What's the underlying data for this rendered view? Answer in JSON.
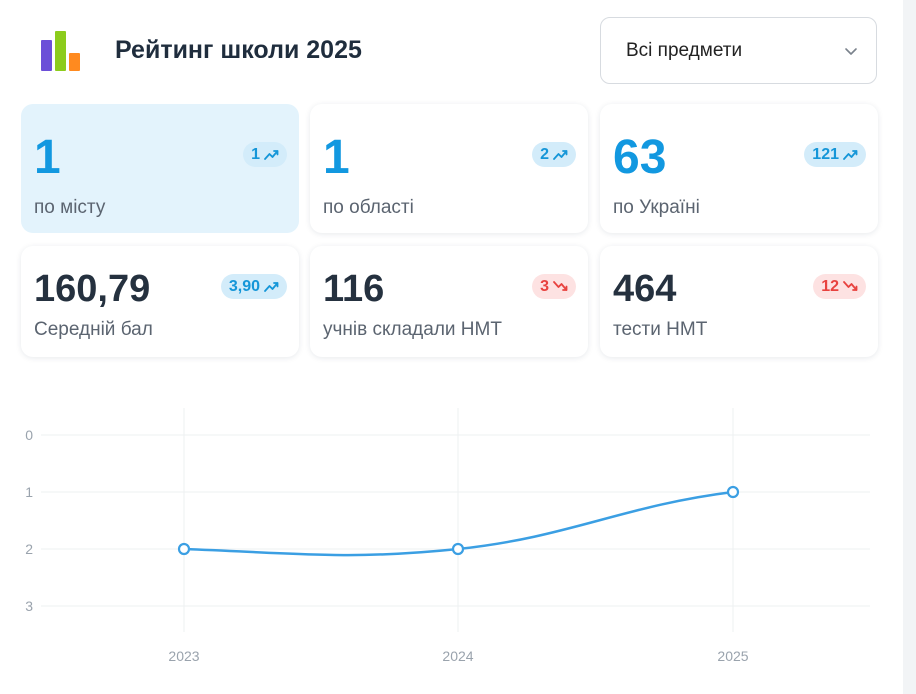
{
  "header": {
    "title": "Рейтинг школи 2025",
    "logo_icon": "bar-chart-logo-icon",
    "logo_colors": [
      "#6c4fd8",
      "#8ccc1c",
      "#ff8a1f"
    ]
  },
  "subject_select": {
    "value": "Всі предмети",
    "icon": "chevron-down-icon"
  },
  "stats": [
    {
      "id": "city",
      "value": "1",
      "label": "по місту",
      "change": "1",
      "trend": "up",
      "active": true
    },
    {
      "id": "region",
      "value": "1",
      "label": "по області",
      "change": "2",
      "trend": "up",
      "active": false
    },
    {
      "id": "ukraine",
      "value": "63",
      "label": "по Україні",
      "change": "121",
      "trend": "up",
      "active": false
    },
    {
      "id": "avg-score",
      "value": "160,79",
      "label": "Середній бал",
      "change": "3,90",
      "trend": "up",
      "active": false
    },
    {
      "id": "students",
      "value": "116",
      "label": "учнів складали НМТ",
      "change": "3",
      "trend": "down",
      "active": false
    },
    {
      "id": "tests",
      "value": "464",
      "label": "тести НМТ",
      "change": "12",
      "trend": "down",
      "active": false
    }
  ],
  "colors": {
    "accent": "#1298e0",
    "up": "#1596d8",
    "down": "#e8423f",
    "line": "#3b9fe3"
  },
  "chart_data": {
    "type": "line",
    "x": [
      "2023",
      "2024",
      "2025"
    ],
    "series": [
      {
        "values": [
          2,
          2,
          1
        ]
      }
    ],
    "y_ticks": [
      "0",
      "1",
      "2",
      "3"
    ],
    "ylim": [
      0,
      3
    ],
    "y_inverted": true,
    "grid": true,
    "smooth": true,
    "title": "",
    "xlabel": "",
    "ylabel": ""
  }
}
